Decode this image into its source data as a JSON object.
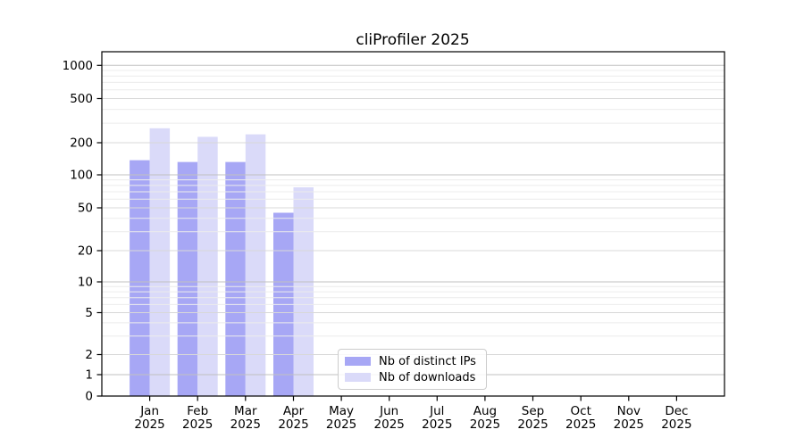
{
  "chart_data": {
    "type": "bar",
    "title": "cliProfiler 2025",
    "categories": [
      "Jan",
      "Feb",
      "Mar",
      "Apr",
      "May",
      "Jun",
      "Jul",
      "Aug",
      "Sep",
      "Oct",
      "Nov",
      "Dec"
    ],
    "x_tick_year": "2025",
    "series": [
      {
        "name": "Nb of distinct IPs",
        "color": "#a7a7f5",
        "values": [
          137,
          132,
          132,
          45,
          0,
          0,
          0,
          0,
          0,
          0,
          0,
          0
        ]
      },
      {
        "name": "Nb of downloads",
        "color": "#dadaf9",
        "values": [
          270,
          226,
          238,
          77,
          0,
          0,
          0,
          0,
          0,
          0,
          0,
          0
        ]
      }
    ],
    "yscale": "symlog",
    "y_ticks": [
      0,
      1,
      2,
      5,
      10,
      20,
      50,
      100,
      200,
      500,
      1000
    ],
    "ylim": [
      0,
      1300
    ],
    "grid": true,
    "legend_position": "lower center"
  }
}
